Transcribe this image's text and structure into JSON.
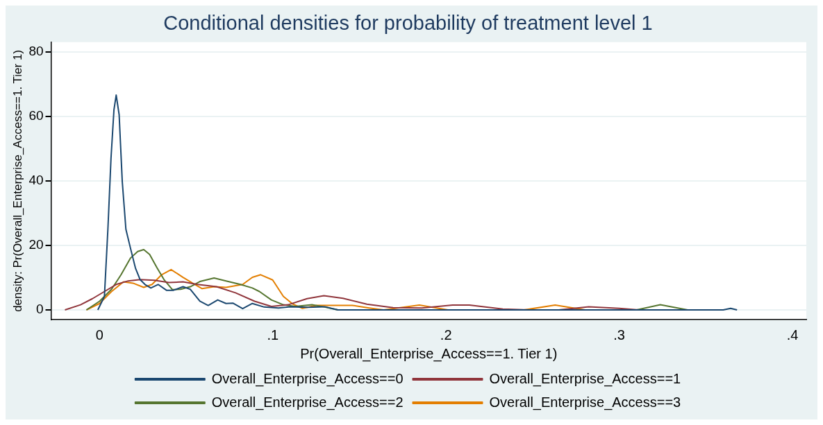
{
  "chart_data": {
    "type": "line",
    "title": "Conditional densities for probability of treatment level 1",
    "xlabel": "Pr(Overall_Enterprise_Access==1. Tier 1)",
    "ylabel": "density: Pr(Overall_Enterprise_Access==1. Tier 1)",
    "xlim": [
      -0.028,
      0.408
    ],
    "ylim": [
      -3,
      83
    ],
    "xticks": [
      0,
      {
        "value": 0.1,
        "label": ".1"
      },
      {
        "value": 0.2,
        "label": ".2"
      },
      {
        "value": 0.3,
        "label": ".3"
      },
      {
        "value": 0.4,
        "label": ".4"
      }
    ],
    "yticks": [
      0,
      20,
      40,
      60,
      80
    ],
    "grid": "y",
    "legend": "bottom",
    "marker": "none",
    "line_style": "solid",
    "series": [
      {
        "name": "Overall_Enterprise_Access==0",
        "color": "#1a476f",
        "x": [
          -0.001,
          0.0028,
          0.0048,
          0.0066,
          0.0083,
          0.0096,
          0.0113,
          0.0131,
          0.0152,
          0.0179,
          0.0207,
          0.0234,
          0.0262,
          0.0296,
          0.0338,
          0.0386,
          0.0427,
          0.0482,
          0.0524,
          0.0579,
          0.0627,
          0.0682,
          0.073,
          0.0771,
          0.0826,
          0.0882,
          0.095,
          0.1033,
          0.11,
          0.12,
          0.13,
          0.1376,
          0.2,
          0.3,
          0.36,
          0.3643,
          0.368
        ],
        "values": [
          0,
          4.2,
          25,
          47,
          62,
          66.6,
          60.5,
          39.8,
          25,
          19,
          13,
          9.4,
          7.9,
          6.8,
          7.9,
          6.1,
          6.1,
          7.2,
          6.4,
          2.7,
          1.4,
          3.1,
          2,
          2.1,
          0.4,
          2,
          0.9,
          0.6,
          1,
          0.8,
          1,
          0,
          0,
          0,
          0,
          0.5,
          0
        ]
      },
      {
        "name": "Overall_Enterprise_Access==1",
        "color": "#90353b",
        "x": [
          -0.02,
          -0.011,
          -0.0041,
          0.0028,
          0.0096,
          0.0165,
          0.0234,
          0.0317,
          0.04,
          0.0482,
          0.0565,
          0.0675,
          0.0785,
          0.0895,
          0.0992,
          0.1088,
          0.1198,
          0.1295,
          0.1405,
          0.1543,
          0.1694,
          0.186,
          0.2038,
          0.2135,
          0.2328,
          0.248,
          0.265,
          0.2824,
          0.3,
          0.3113
        ],
        "values": [
          0,
          1.6,
          3.5,
          5.7,
          7.9,
          9,
          9.4,
          9.2,
          8.5,
          8.7,
          7.9,
          7.2,
          5.3,
          2.7,
          1.1,
          1.6,
          3.5,
          4.4,
          3.6,
          1.8,
          0.7,
          0.6,
          1.5,
          1.5,
          0.3,
          0,
          0,
          1,
          0.5,
          0
        ]
      },
      {
        "name": "Overall_Enterprise_Access==2",
        "color": "#55752f",
        "x": [
          -0.0076,
          0,
          0.0069,
          0.0124,
          0.0179,
          0.022,
          0.0255,
          0.0289,
          0.0331,
          0.0372,
          0.042,
          0.0468,
          0.0524,
          0.0579,
          0.0661,
          0.073,
          0.0813,
          0.0882,
          0.0923,
          0.0992,
          0.1061,
          0.113,
          0.1226,
          0.129,
          0.1376,
          0.2,
          0.31,
          0.3237,
          0.3395
        ],
        "values": [
          0,
          2.7,
          6.4,
          10.9,
          16.1,
          18.1,
          18.7,
          17.2,
          13.1,
          9.4,
          6.3,
          6.4,
          7.2,
          8.8,
          9.9,
          9,
          7.9,
          6.8,
          5.7,
          3.1,
          1.6,
          1.1,
          1.6,
          1,
          0,
          0,
          0,
          1.6,
          0
        ]
      },
      {
        "name": "Overall_Enterprise_Access==3",
        "color": "#e37e00",
        "x": [
          -0.0076,
          0,
          0.0069,
          0.0138,
          0.0193,
          0.0255,
          0.0303,
          0.0358,
          0.0413,
          0.0482,
          0.0537,
          0.0592,
          0.0661,
          0.073,
          0.0826,
          0.0882,
          0.093,
          0.0999,
          0.1061,
          0.1116,
          0.1171,
          0.1253,
          0.146,
          0.1556,
          0.164,
          0.1846,
          0.2011,
          0.245,
          0.263,
          0.2803
        ],
        "values": [
          0,
          2,
          5.7,
          8.7,
          8.3,
          7,
          7.9,
          10.9,
          12.5,
          10.1,
          8.3,
          6.6,
          7.2,
          7,
          7.9,
          10.1,
          10.9,
          9.3,
          4.2,
          1.8,
          0.5,
          1.4,
          1.4,
          0.6,
          0,
          1.5,
          0,
          0,
          1.5,
          0
        ]
      }
    ]
  }
}
